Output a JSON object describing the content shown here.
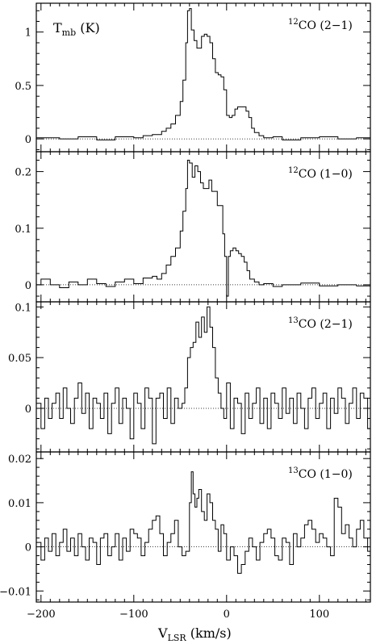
{
  "chart_data": {
    "type": "line",
    "style": "step histogram, four stacked panels sharing the x axis, dotted zero baseline in each panel",
    "xlabel_main": "V",
    "xlabel_sub": "LSR",
    "xlabel_unit": "(km/s)",
    "ylabel_main": "T",
    "ylabel_sub": "mb",
    "ylabel_unit": "(K)",
    "xlim": [
      -205,
      155
    ],
    "x_ticks": [
      {
        "value": -200,
        "label": "−200"
      },
      {
        "value": -100,
        "label": "−100"
      },
      {
        "value": 0,
        "label": "0"
      },
      {
        "value": 100,
        "label": "100"
      }
    ],
    "panels": [
      {
        "label_sup": "12",
        "label_main": "CO (2−1)",
        "ylim": [
          -0.12,
          1.27
        ],
        "y_ticks": [
          {
            "value": 0,
            "label": "0"
          },
          {
            "value": 0.5,
            "label": "0.5"
          },
          {
            "value": 1,
            "label": "1"
          }
        ],
        "x": [
          -205,
          -180,
          -160,
          -140,
          -120,
          -100,
          -90,
          -80,
          -70,
          -65,
          -60,
          -55,
          -50,
          -47,
          -44,
          -42,
          -40,
          -38,
          -35,
          -32,
          -30,
          -27,
          -24,
          -21,
          -18,
          -15,
          -12,
          -9,
          -6,
          -3,
          0,
          3,
          6,
          9,
          12,
          15,
          18,
          21,
          24,
          27,
          30,
          35,
          40,
          50,
          60,
          80,
          100,
          120,
          140,
          155
        ],
        "values": [
          0.01,
          0.0,
          0.02,
          -0.01,
          0.02,
          0.01,
          0.03,
          0.04,
          0.07,
          0.1,
          0.14,
          0.22,
          0.35,
          0.55,
          0.9,
          1.2,
          1.22,
          1.02,
          0.92,
          0.85,
          0.85,
          0.96,
          0.98,
          0.96,
          0.9,
          0.75,
          0.62,
          0.6,
          0.58,
          0.46,
          0.22,
          0.2,
          0.22,
          0.28,
          0.3,
          0.3,
          0.3,
          0.26,
          0.2,
          0.1,
          0.06,
          0.03,
          0.01,
          0.02,
          -0.01,
          0.01,
          0.02,
          0.0,
          0.01,
          0.02
        ]
      },
      {
        "label_sup": "12",
        "label_main": "CO (1−0)",
        "ylim": [
          -0.03,
          0.235
        ],
        "y_ticks": [
          {
            "value": 0,
            "label": "0"
          },
          {
            "value": 0.1,
            "label": "0.1"
          },
          {
            "value": 0.2,
            "label": "0.2"
          }
        ],
        "x": [
          -205,
          -200,
          -190,
          -180,
          -170,
          -160,
          -150,
          -140,
          -130,
          -120,
          -110,
          -100,
          -90,
          -80,
          -75,
          -70,
          -65,
          -60,
          -55,
          -50,
          -47,
          -44,
          -42,
          -40,
          -37,
          -34,
          -31,
          -28,
          -25,
          -22,
          -19,
          -16,
          -13,
          -10,
          -7,
          -4,
          -2,
          0,
          2,
          4,
          7,
          10,
          13,
          16,
          19,
          22,
          25,
          30,
          35,
          40,
          50,
          60,
          80,
          100,
          120,
          140
        ],
        "values": [
          0.0,
          0.01,
          0.0,
          -0.005,
          0.005,
          0.0,
          0.01,
          0.002,
          -0.003,
          0.005,
          0.01,
          0.002,
          0.012,
          0.015,
          0.01,
          0.02,
          0.035,
          0.05,
          0.065,
          0.095,
          0.13,
          0.17,
          0.22,
          0.215,
          0.19,
          0.21,
          0.2,
          0.18,
          0.17,
          0.17,
          0.185,
          0.165,
          0.165,
          0.14,
          0.14,
          0.09,
          0.05,
          -0.02,
          0.05,
          0.06,
          0.065,
          0.06,
          0.055,
          0.05,
          0.04,
          0.025,
          0.01,
          0.005,
          0.0,
          0.002,
          -0.003,
          0.0,
          0.003,
          -0.002,
          0.0,
          -0.002
        ]
      },
      {
        "label_sup": "13",
        "label_main": "CO (2−1)",
        "ylim": [
          -0.043,
          0.105
        ],
        "y_ticks": [
          {
            "value": 0,
            "label": "0"
          },
          {
            "value": 0.05,
            "label": "0.05"
          },
          {
            "value": 0.1,
            "label": "0.1"
          }
        ],
        "x": [
          -205,
          -200,
          -196,
          -192,
          -188,
          -184,
          -180,
          -176,
          -172,
          -168,
          -164,
          -160,
          -156,
          -152,
          -148,
          -144,
          -140,
          -136,
          -132,
          -128,
          -124,
          -120,
          -116,
          -112,
          -108,
          -104,
          -100,
          -96,
          -92,
          -88,
          -84,
          -80,
          -76,
          -72,
          -68,
          -64,
          -60,
          -56,
          -52,
          -48,
          -45,
          -42,
          -39,
          -36,
          -33,
          -30,
          -27,
          -24,
          -21,
          -18,
          -15,
          -12,
          -9,
          -6,
          -3,
          0,
          4,
          8,
          12,
          16,
          20,
          24,
          28,
          32,
          36,
          40,
          44,
          48,
          52,
          56,
          60,
          64,
          68,
          72,
          76,
          80,
          84,
          88,
          92,
          96,
          100,
          104,
          108,
          112,
          116,
          120,
          124,
          128,
          132,
          136,
          140,
          144,
          148,
          152
        ],
        "values": [
          0.005,
          -0.02,
          0.01,
          -0.01,
          0.005,
          0.015,
          -0.01,
          0.02,
          0.0,
          -0.015,
          0.01,
          0.025,
          -0.005,
          0.015,
          -0.02,
          0.01,
          0.005,
          -0.01,
          0.015,
          -0.025,
          0.005,
          0.02,
          -0.015,
          0.01,
          0.0,
          -0.03,
          0.015,
          0.005,
          -0.02,
          0.02,
          0.01,
          -0.035,
          0.01,
          0.015,
          -0.01,
          0.02,
          -0.015,
          0.01,
          0.0,
          0.005,
          0.02,
          0.05,
          0.06,
          0.065,
          0.085,
          0.07,
          0.09,
          0.075,
          0.1,
          0.08,
          0.06,
          0.03,
          0.015,
          0.0,
          -0.01,
          0.025,
          -0.02,
          0.01,
          0.005,
          -0.025,
          0.015,
          -0.01,
          0.005,
          0.02,
          -0.015,
          0.01,
          -0.02,
          0.015,
          0.005,
          -0.01,
          0.02,
          -0.005,
          0.01,
          -0.015,
          0.015,
          0.0,
          -0.02,
          0.01,
          0.02,
          -0.01,
          0.005,
          0.015,
          -0.02,
          0.01,
          -0.005,
          0.02,
          0.01,
          -0.015,
          0.005,
          0.02,
          -0.01,
          0.015,
          0.01,
          -0.02
        ]
      },
      {
        "label_sup": "13",
        "label_main": "CO (1−0)",
        "ylim": [
          -0.0125,
          0.0215
        ],
        "y_ticks": [
          {
            "value": -0.01,
            "label": "−0.01"
          },
          {
            "value": 0,
            "label": "0"
          },
          {
            "value": 0.01,
            "label": "0.01"
          },
          {
            "value": 0.02,
            "label": "0.02"
          }
        ],
        "x": [
          -205,
          -200,
          -196,
          -192,
          -188,
          -184,
          -180,
          -176,
          -172,
          -168,
          -164,
          -160,
          -156,
          -152,
          -148,
          -144,
          -140,
          -136,
          -132,
          -128,
          -124,
          -120,
          -116,
          -112,
          -108,
          -104,
          -100,
          -96,
          -92,
          -88,
          -84,
          -80,
          -76,
          -72,
          -68,
          -64,
          -60,
          -56,
          -52,
          -48,
          -44,
          -40,
          -38,
          -36,
          -34,
          -32,
          -30,
          -27,
          -24,
          -21,
          -18,
          -15,
          -12,
          -9,
          -6,
          -3,
          0,
          4,
          8,
          12,
          16,
          20,
          24,
          28,
          32,
          36,
          40,
          44,
          48,
          52,
          56,
          60,
          64,
          68,
          72,
          76,
          80,
          84,
          88,
          92,
          96,
          100,
          104,
          108,
          112,
          116,
          120,
          124,
          128,
          132,
          136,
          140,
          144,
          148,
          152
        ],
        "values": [
          0.001,
          -0.003,
          0.002,
          -0.001,
          0.003,
          -0.002,
          0.001,
          0.004,
          -0.001,
          0.002,
          -0.002,
          0.003,
          0.0,
          -0.003,
          0.002,
          0.001,
          -0.004,
          0.002,
          0.003,
          -0.002,
          0.0,
          0.003,
          -0.003,
          0.002,
          -0.001,
          0.004,
          0.003,
          0.002,
          -0.002,
          0.001,
          0.004,
          0.006,
          0.007,
          0.003,
          -0.002,
          0.001,
          0.003,
          0.006,
          0.0,
          -0.002,
          -0.001,
          0.01,
          0.017,
          0.012,
          0.009,
          0.011,
          0.013,
          0.008,
          0.006,
          0.012,
          0.01,
          0.006,
          0.004,
          -0.001,
          0.005,
          0.003,
          -0.003,
          0.0,
          -0.002,
          -0.006,
          -0.004,
          -0.001,
          0.002,
          0.0,
          -0.003,
          0.001,
          0.003,
          0.004,
          0.002,
          -0.002,
          -0.003,
          0.002,
          0.001,
          -0.004,
          0.003,
          0.0,
          0.002,
          0.005,
          0.006,
          0.004,
          0.001,
          0.003,
          0.002,
          0.0,
          -0.002,
          0.011,
          0.009,
          0.003,
          0.005,
          0.002,
          0.0,
          0.004,
          0.006,
          0.002,
          -0.001
        ]
      }
    ]
  }
}
